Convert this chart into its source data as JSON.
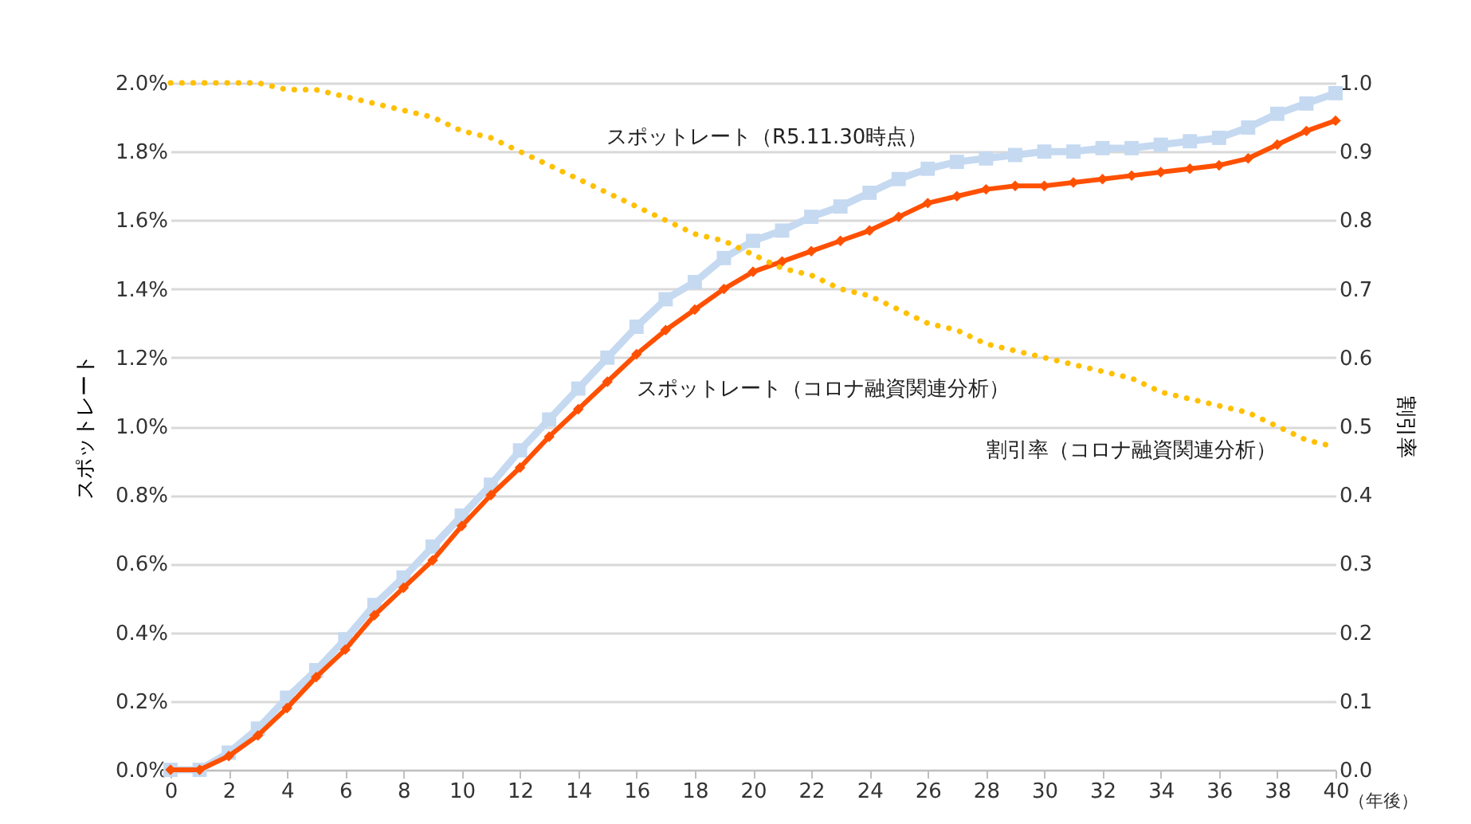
{
  "chart_data": {
    "type": "line",
    "ylabel": "スポットレート",
    "y2label": "割引率",
    "xlabel": "（年後）",
    "x": [
      0,
      1,
      2,
      3,
      4,
      5,
      6,
      7,
      8,
      9,
      10,
      11,
      12,
      13,
      14,
      15,
      16,
      17,
      18,
      19,
      20,
      21,
      22,
      23,
      24,
      25,
      26,
      27,
      28,
      29,
      30,
      31,
      32,
      33,
      34,
      35,
      36,
      37,
      38,
      39,
      40
    ],
    "series": [
      {
        "name": "スポットレート（R5.11.30時点）",
        "color": "#c5d9f1",
        "marker": "square",
        "line_style": "solid",
        "values": [
          0,
          0,
          0.05,
          0.12,
          0.21,
          0.29,
          0.38,
          0.48,
          0.56,
          0.65,
          0.74,
          0.83,
          0.93,
          1.02,
          1.11,
          1.2,
          1.29,
          1.37,
          1.42,
          1.49,
          1.54,
          1.57,
          1.61,
          1.64,
          1.68,
          1.72,
          1.75,
          1.77,
          1.78,
          1.79,
          1.8,
          1.8,
          1.81,
          1.81,
          1.82,
          1.83,
          1.84,
          1.87,
          1.91,
          1.94,
          1.97
        ]
      },
      {
        "name": "スポットレート（コロナ融資関連分析）",
        "color": "#ff5000",
        "marker": "diamond",
        "line_style": "solid",
        "values": [
          0,
          0,
          0.04,
          0.1,
          0.18,
          0.27,
          0.35,
          0.45,
          0.53,
          0.61,
          0.71,
          0.8,
          0.88,
          0.97,
          1.05,
          1.13,
          1.21,
          1.28,
          1.34,
          1.4,
          1.45,
          1.48,
          1.51,
          1.54,
          1.57,
          1.61,
          1.65,
          1.67,
          1.69,
          1.7,
          1.7,
          1.71,
          1.72,
          1.73,
          1.74,
          1.75,
          1.76,
          1.78,
          1.82,
          1.86,
          1.89
        ]
      },
      {
        "name": "割引率（コロナ融資関連分析）",
        "color": "#ffc000",
        "marker": "none",
        "line_style": "dotted",
        "axis": "y2",
        "values": [
          1.0,
          1.0,
          1.0,
          1.0,
          0.99,
          0.99,
          0.98,
          0.97,
          0.96,
          0.95,
          0.93,
          0.92,
          0.9,
          0.88,
          0.86,
          0.84,
          0.82,
          0.8,
          0.78,
          0.77,
          0.75,
          0.73,
          0.72,
          0.7,
          0.69,
          0.67,
          0.65,
          0.64,
          0.62,
          0.61,
          0.6,
          0.59,
          0.58,
          0.57,
          0.55,
          0.54,
          0.53,
          0.52,
          0.5,
          0.48,
          0.47
        ]
      }
    ],
    "xlim": [
      0,
      40
    ],
    "xticks": [
      0,
      2,
      4,
      6,
      8,
      10,
      12,
      14,
      16,
      18,
      20,
      22,
      24,
      26,
      28,
      30,
      32,
      34,
      36,
      38,
      40
    ],
    "ylim": [
      0,
      2.0
    ],
    "yticks": [
      {
        "value": 0,
        "label": "0.0%"
      },
      {
        "value": 0.2,
        "label": "0.2%"
      },
      {
        "value": 0.4,
        "label": "0.4%"
      },
      {
        "value": 0.6,
        "label": "0.6%"
      },
      {
        "value": 0.8,
        "label": "0.8%"
      },
      {
        "value": 1.0,
        "label": "1.0%"
      },
      {
        "value": 1.2,
        "label": "1.2%"
      },
      {
        "value": 1.4,
        "label": "1.4%"
      },
      {
        "value": 1.6,
        "label": "1.6%"
      },
      {
        "value": 1.8,
        "label": "1.8%"
      },
      {
        "value": 2.0,
        "label": "2.0%"
      }
    ],
    "y2lim": [
      0,
      1.0
    ],
    "y2ticks": [
      {
        "value": 0,
        "label": "0.0"
      },
      {
        "value": 0.1,
        "label": "0.1"
      },
      {
        "value": 0.2,
        "label": "0.2"
      },
      {
        "value": 0.3,
        "label": "0.3"
      },
      {
        "value": 0.4,
        "label": "0.4"
      },
      {
        "value": 0.5,
        "label": "0.5"
      },
      {
        "value": 0.6,
        "label": "0.6"
      },
      {
        "value": 0.7,
        "label": "0.7"
      },
      {
        "value": 0.8,
        "label": "0.8"
      },
      {
        "value": 0.9,
        "label": "0.9"
      },
      {
        "value": 1.0,
        "label": "1.0"
      }
    ],
    "grid": "y"
  }
}
